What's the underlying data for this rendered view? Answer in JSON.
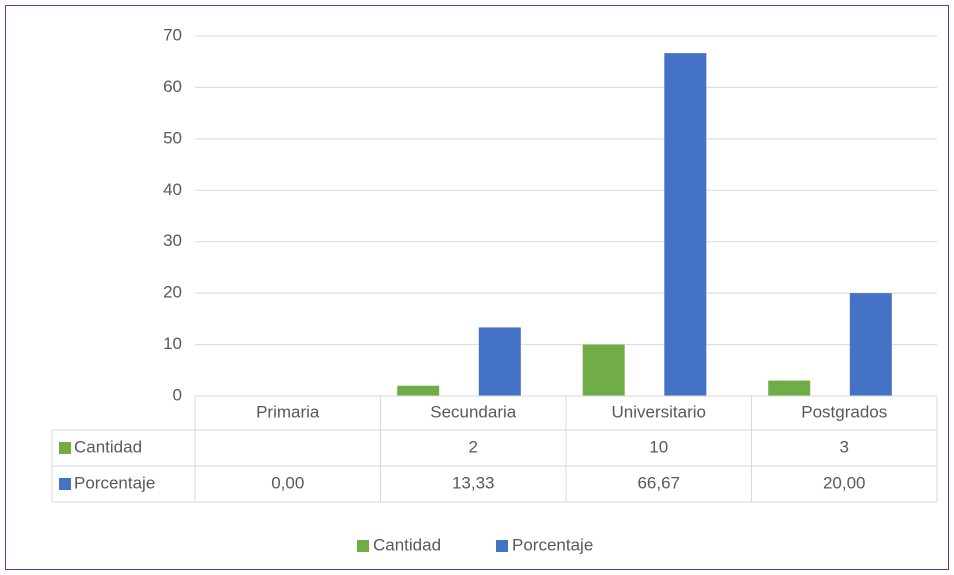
{
  "chart_data": {
    "type": "bar",
    "categories": [
      "Primaria",
      "Secundaria",
      "Universitario",
      "Postgrados"
    ],
    "series": [
      {
        "name": "Cantidad",
        "color": "#70ad47",
        "values": [
          null,
          2,
          10,
          3
        ]
      },
      {
        "name": "Porcentaje",
        "color": "#4472c4",
        "values": [
          0,
          13.33,
          66.67,
          20
        ],
        "value_labels": [
          "0,00",
          "13,33",
          "66,67",
          "20,00"
        ]
      }
    ],
    "ylim": [
      0,
      70
    ],
    "yticks": [
      0,
      10,
      20,
      30,
      40,
      50,
      60,
      70
    ],
    "grid": true,
    "legend": "bottom",
    "data_table": true
  }
}
